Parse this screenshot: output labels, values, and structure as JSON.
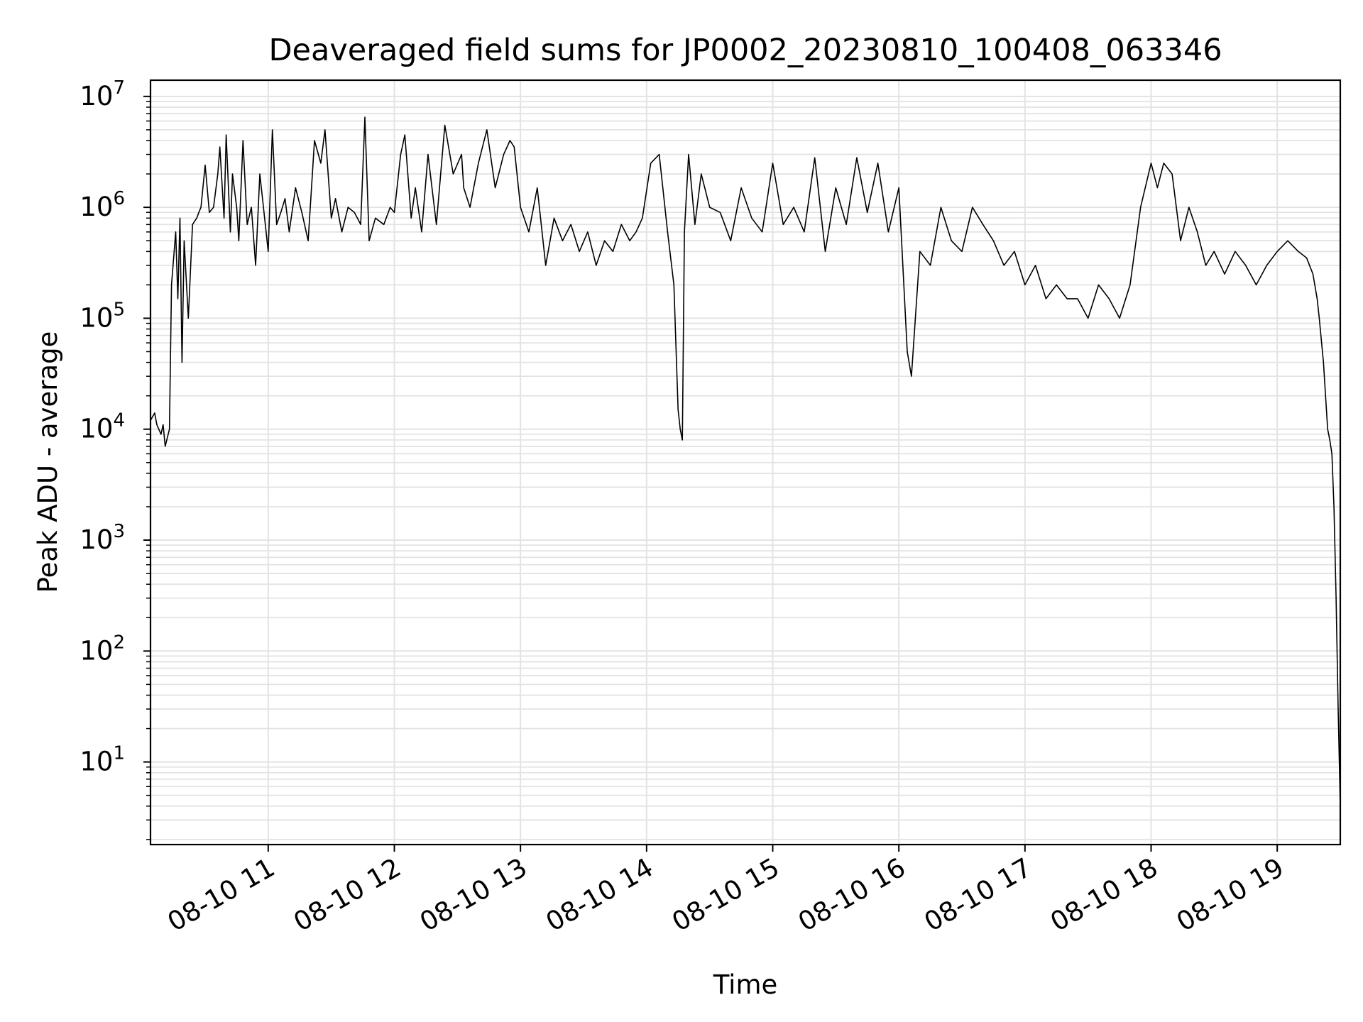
{
  "chart_data": {
    "type": "line",
    "title": "Deaveraged field sums for JP0002_20230810_100408_063346",
    "xlabel": "Time",
    "ylabel": "Peak ADU - average",
    "yscale": "log",
    "ylim": [
      1.8,
      14000000
    ],
    "xlim": [
      "08-10 10:04",
      "08-10 19:30"
    ],
    "grid": true,
    "line_color": "#000000",
    "grid_color": "#e3e3e3",
    "x_ticks": [
      "08-10 11",
      "08-10 12",
      "08-10 13",
      "08-10 14",
      "08-10 15",
      "08-10 16",
      "08-10 17",
      "08-10 18",
      "08-10 19"
    ],
    "y_ticks": [
      {
        "base": "10",
        "exp": "1",
        "value": 10
      },
      {
        "base": "10",
        "exp": "2",
        "value": 100
      },
      {
        "base": "10",
        "exp": "3",
        "value": 1000
      },
      {
        "base": "10",
        "exp": "4",
        "value": 10000
      },
      {
        "base": "10",
        "exp": "5",
        "value": 100000
      },
      {
        "base": "10",
        "exp": "6",
        "value": 1000000
      },
      {
        "base": "10",
        "exp": "7",
        "value": 10000000
      }
    ],
    "series": [
      {
        "x": [
          "08-10 10:04",
          "08-10 10:06",
          "08-10 10:07",
          "08-10 10:09",
          "08-10 10:10",
          "08-10 10:11",
          "08-10 10:13",
          "08-10 10:14",
          "08-10 10:15",
          "08-10 10:16",
          "08-10 10:17",
          "08-10 10:18",
          "08-10 10:19",
          "08-10 10:20",
          "08-10 10:22",
          "08-10 10:24",
          "08-10 10:26",
          "08-10 10:27",
          "08-10 10:28",
          "08-10 10:30",
          "08-10 10:32",
          "08-10 10:34",
          "08-10 10:36",
          "08-10 10:37",
          "08-10 10:39",
          "08-10 10:40",
          "08-10 10:42",
          "08-10 10:43",
          "08-10 10:45",
          "08-10 10:46",
          "08-10 10:48",
          "08-10 10:50",
          "08-10 10:52",
          "08-10 10:54",
          "08-10 10:56",
          "08-10 10:58",
          "08-10 11:00",
          "08-10 11:02",
          "08-10 11:04",
          "08-10 11:06",
          "08-10 11:08",
          "08-10 11:10",
          "08-10 11:13",
          "08-10 11:16",
          "08-10 11:19",
          "08-10 11:22",
          "08-10 11:25",
          "08-10 11:27",
          "08-10 11:30",
          "08-10 11:32",
          "08-10 11:35",
          "08-10 11:38",
          "08-10 11:41",
          "08-10 11:44",
          "08-10 11:46",
          "08-10 11:48",
          "08-10 11:51",
          "08-10 11:55",
          "08-10 11:58",
          "08-10 12:00",
          "08-10 12:03",
          "08-10 12:05",
          "08-10 12:08",
          "08-10 12:10",
          "08-10 12:13",
          "08-10 12:16",
          "08-10 12:20",
          "08-10 12:24",
          "08-10 12:28",
          "08-10 12:32",
          "08-10 12:33",
          "08-10 12:36",
          "08-10 12:40",
          "08-10 12:44",
          "08-10 12:48",
          "08-10 12:52",
          "08-10 12:55",
          "08-10 12:57",
          "08-10 13:00",
          "08-10 13:04",
          "08-10 13:08",
          "08-10 13:12",
          "08-10 13:16",
          "08-10 13:20",
          "08-10 13:24",
          "08-10 13:28",
          "08-10 13:32",
          "08-10 13:36",
          "08-10 13:40",
          "08-10 13:44",
          "08-10 13:48",
          "08-10 13:52",
          "08-10 13:55",
          "08-10 13:58",
          "08-10 14:02",
          "08-10 14:06",
          "08-10 14:10",
          "08-10 14:13",
          "08-10 14:15",
          "08-10 14:16",
          "08-10 14:17",
          "08-10 14:18",
          "08-10 14:20",
          "08-10 14:23",
          "08-10 14:26",
          "08-10 14:30",
          "08-10 14:35",
          "08-10 14:40",
          "08-10 14:45",
          "08-10 14:50",
          "08-10 14:55",
          "08-10 15:00",
          "08-10 15:05",
          "08-10 15:10",
          "08-10 15:15",
          "08-10 15:20",
          "08-10 15:25",
          "08-10 15:30",
          "08-10 15:35",
          "08-10 15:40",
          "08-10 15:45",
          "08-10 15:50",
          "08-10 15:55",
          "08-10 16:00",
          "08-10 16:04",
          "08-10 16:06",
          "08-10 16:10",
          "08-10 16:15",
          "08-10 16:20",
          "08-10 16:25",
          "08-10 16:30",
          "08-10 16:35",
          "08-10 16:40",
          "08-10 16:45",
          "08-10 16:50",
          "08-10 16:55",
          "08-10 17:00",
          "08-10 17:05",
          "08-10 17:10",
          "08-10 17:15",
          "08-10 17:20",
          "08-10 17:25",
          "08-10 17:30",
          "08-10 17:35",
          "08-10 17:40",
          "08-10 17:45",
          "08-10 17:50",
          "08-10 17:55",
          "08-10 18:00",
          "08-10 18:03",
          "08-10 18:06",
          "08-10 18:10",
          "08-10 18:14",
          "08-10 18:18",
          "08-10 18:22",
          "08-10 18:26",
          "08-10 18:30",
          "08-10 18:35",
          "08-10 18:40",
          "08-10 18:45",
          "08-10 18:50",
          "08-10 18:55",
          "08-10 19:00",
          "08-10 19:05",
          "08-10 19:10",
          "08-10 19:14",
          "08-10 19:17",
          "08-10 19:19",
          "08-10 19:20",
          "08-10 19:22",
          "08-10 19:24",
          "08-10 19:25",
          "08-10 19:26",
          "08-10 19:27",
          "08-10 19:28",
          "08-10 19:29",
          "08-10 19:30"
        ],
        "y": [
          12000,
          14000,
          11000,
          9000,
          11000,
          7000,
          10000,
          200000,
          350000,
          600000,
          150000,
          800000,
          40000,
          500000,
          100000,
          700000,
          800000,
          900000,
          1000000,
          2400000,
          900000,
          1000000,
          2000000,
          3500000,
          800000,
          4500000,
          600000,
          2000000,
          1000000,
          500000,
          4000000,
          700000,
          1000000,
          300000,
          2000000,
          900000,
          400000,
          5000000,
          700000,
          900000,
          1200000,
          600000,
          1500000,
          900000,
          500000,
          4000000,
          2500000,
          5000000,
          800000,
          1200000,
          600000,
          1000000,
          900000,
          700000,
          6500000,
          500000,
          800000,
          700000,
          1000000,
          900000,
          3000000,
          4500000,
          800000,
          1500000,
          600000,
          3000000,
          700000,
          5500000,
          2000000,
          3000000,
          1500000,
          1000000,
          2500000,
          5000000,
          1500000,
          3000000,
          4000000,
          3500000,
          1000000,
          600000,
          1500000,
          300000,
          800000,
          500000,
          700000,
          400000,
          600000,
          300000,
          500000,
          400000,
          700000,
          500000,
          600000,
          800000,
          2500000,
          3000000,
          600000,
          200000,
          15000,
          10000,
          8000,
          600000,
          3000000,
          700000,
          2000000,
          1000000,
          900000,
          500000,
          1500000,
          800000,
          600000,
          2500000,
          700000,
          1000000,
          600000,
          2800000,
          400000,
          1500000,
          700000,
          2800000,
          900000,
          2500000,
          600000,
          1500000,
          50000,
          30000,
          400000,
          300000,
          1000000,
          500000,
          400000,
          1000000,
          700000,
          500000,
          300000,
          400000,
          200000,
          300000,
          150000,
          200000,
          150000,
          150000,
          100000,
          200000,
          150000,
          100000,
          200000,
          1000000,
          2500000,
          1500000,
          2500000,
          2000000,
          500000,
          1000000,
          600000,
          300000,
          400000,
          250000,
          400000,
          300000,
          200000,
          300000,
          400000,
          500000,
          400000,
          350000,
          250000,
          150000,
          100000,
          40000,
          10000,
          8000,
          6000,
          2000,
          300,
          30,
          4
        ]
      }
    ]
  }
}
